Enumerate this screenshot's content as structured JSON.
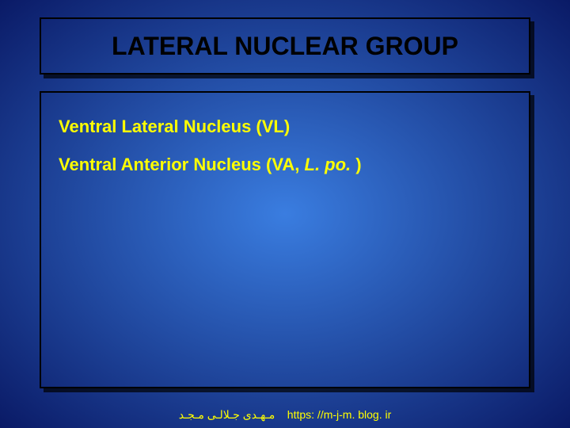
{
  "slide": {
    "background_gradient": {
      "inner": "#3a7de0",
      "outer": "#0a1a66"
    },
    "title": {
      "text": "LATERAL NUCLEAR GROUP",
      "fontsize": 32,
      "color": "#000000",
      "box_border_color": "#000000",
      "box_shadow_color": "rgba(0,0,0,0.7)"
    },
    "content": {
      "box_border_color": "#000000",
      "box_shadow_color": "rgba(0,0,0,0.7)",
      "text_color": "#ffff00",
      "fontsize": 22,
      "lines": [
        {
          "plain": "Ventral Lateral Nucleus (VL)",
          "italic": ""
        },
        {
          "plain": "Ventral Anterior Nucleus (VA, ",
          "italic": "L. po.",
          "after": " )"
        }
      ]
    },
    "footer": {
      "author": "ﻣـﻬـﺪﯼ ﺟـﻼﻟـﯽ ﻣـﺠـﺪ",
      "url": "https: //m-j-m. blog. ir",
      "fontsize": 14,
      "color": "#ffff00"
    }
  }
}
